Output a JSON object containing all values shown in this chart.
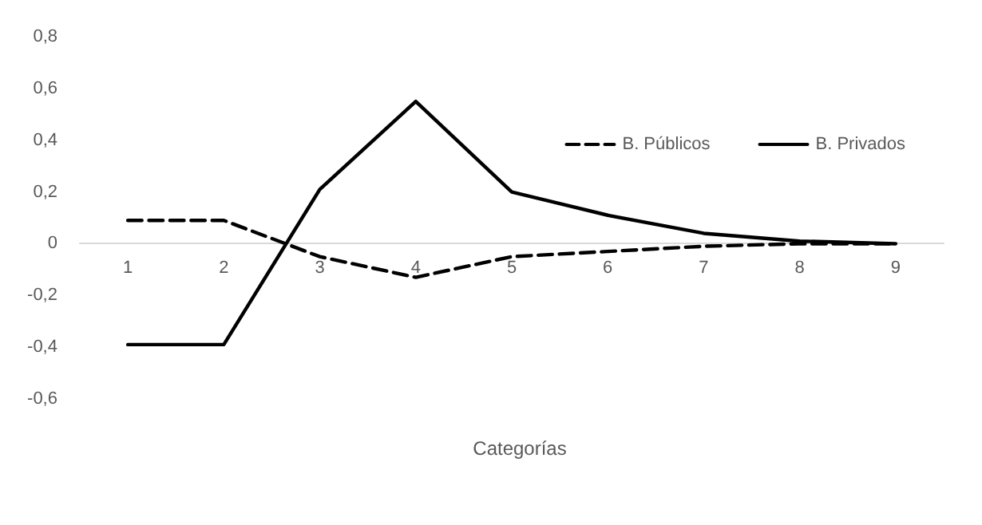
{
  "chart_data": {
    "type": "line",
    "xlabel": "Categorías",
    "categories": [
      "1",
      "2",
      "3",
      "4",
      "5",
      "6",
      "7",
      "8",
      "9"
    ],
    "series": [
      {
        "name": "B. Públicos",
        "color": "#000000",
        "line_style": "dashed",
        "values": [
          0.09,
          0.09,
          -0.05,
          -0.13,
          -0.05,
          -0.03,
          -0.01,
          0,
          0
        ]
      },
      {
        "name": "B. Privados",
        "color": "#000000",
        "line_style": "solid",
        "values": [
          -0.39,
          -0.39,
          0.21,
          0.55,
          0.2,
          0.11,
          0.04,
          0.01,
          0
        ]
      }
    ],
    "ylim": [
      -0.6,
      0.8
    ],
    "yticks": [
      {
        "value": -0.6,
        "label": "-0,6"
      },
      {
        "value": -0.4,
        "label": "-0,4"
      },
      {
        "value": -0.2,
        "label": "-0,2"
      },
      {
        "value": 0,
        "label": "0"
      },
      {
        "value": 0.2,
        "label": "0,2"
      },
      {
        "value": 0.4,
        "label": "0,4"
      },
      {
        "value": 0.6,
        "label": "0,6"
      },
      {
        "value": 0.8,
        "label": "0,8"
      }
    ],
    "grid": false,
    "legend": "top right",
    "marker": "none"
  }
}
